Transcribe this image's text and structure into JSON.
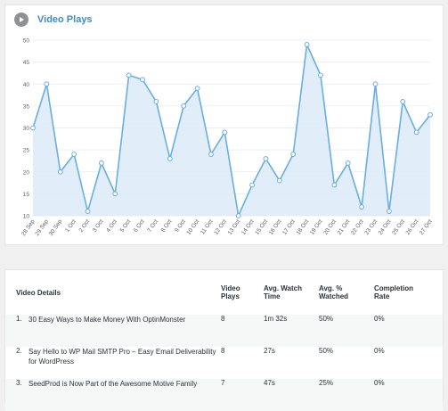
{
  "header": {
    "title": "Video Plays",
    "icon": "play-icon"
  },
  "colors": {
    "accent": "#3e8bc4",
    "line": "#6aaee0",
    "area": "#dcebf8",
    "text": "#2c3338"
  },
  "chart_data": {
    "type": "area",
    "title": "Video Plays",
    "categories": [
      "28 Sep",
      "29 Sep",
      "30 Sep",
      "1 Oct",
      "2 Oct",
      "3 Oct",
      "4 Oct",
      "5 Oct",
      "6 Oct",
      "7 Oct",
      "8 Oct",
      "9 Oct",
      "10 Oct",
      "11 Oct",
      "12 Oct",
      "13 Oct",
      "14 Oct",
      "15 Oct",
      "16 Oct",
      "17 Oct",
      "18 Oct",
      "19 Oct",
      "20 Oct",
      "21 Oct",
      "22 Oct",
      "23 Oct",
      "24 Oct",
      "25 Oct",
      "26 Oct",
      "27 Oct"
    ],
    "series": [
      {
        "values": [
          30,
          40,
          20,
          24,
          11,
          22,
          15,
          42,
          41,
          36,
          23,
          35,
          39,
          24,
          29,
          10,
          17,
          23,
          18,
          24,
          49,
          42,
          17,
          22,
          12,
          40,
          11,
          36,
          29,
          33
        ]
      }
    ],
    "yticks": [
      10,
      15,
      20,
      25,
      30,
      35,
      40,
      45,
      50
    ],
    "ylim": [
      10,
      50
    ],
    "grid": true
  },
  "table": {
    "headers": {
      "details": "Video Details",
      "plays": "Video Plays",
      "watch": "Avg. Watch Time",
      "pct": "Avg. % Watched",
      "completion": "Completion Rate"
    },
    "rows": [
      {
        "num": "1.",
        "title": "30 Easy Ways to Make Money With OptinMonster",
        "plays": "8",
        "watch": "1m 32s",
        "pct": "50%",
        "completion": "0%"
      },
      {
        "num": "2.",
        "title": "Say Hello to WP Mail SMTP Pro – Easy Email Deliverability for WordPress",
        "plays": "8",
        "watch": "27s",
        "pct": "50%",
        "completion": "0%"
      },
      {
        "num": "3.",
        "title": "SeedProd is Now Part of the Awesome Motive Family",
        "plays": "7",
        "watch": "47s",
        "pct": "25%",
        "completion": "0%"
      }
    ]
  }
}
